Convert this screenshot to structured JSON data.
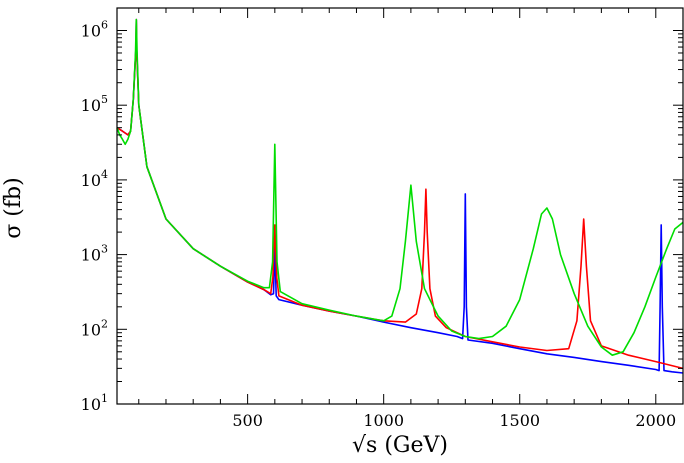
{
  "chart_data": {
    "type": "line",
    "title": "",
    "xlabel": "√s (GeV)",
    "ylabel": "σ (fb)",
    "xlim": [
      20,
      2100
    ],
    "ylim": [
      10,
      2000000
    ],
    "yscale": "log",
    "grid": false,
    "x_ticks": [
      {
        "value": 500,
        "label": "500"
      },
      {
        "value": 1000,
        "label": "1000"
      },
      {
        "value": 1500,
        "label": "1500"
      },
      {
        "value": 2000,
        "label": "2000"
      }
    ],
    "y_ticks": [
      {
        "value": 10,
        "base": "10",
        "exp": "1"
      },
      {
        "value": 100,
        "base": "10",
        "exp": "2"
      },
      {
        "value": 1000,
        "base": "10",
        "exp": "3"
      },
      {
        "value": 10000,
        "base": "10",
        "exp": "4"
      },
      {
        "value": 100000,
        "base": "10",
        "exp": "5"
      },
      {
        "value": 1000000,
        "base": "10",
        "exp": "6"
      }
    ],
    "series": [
      {
        "color": "#0000ff",
        "points": [
          [
            20,
            50000
          ],
          [
            40,
            45000
          ],
          [
            60,
            40000
          ],
          [
            70,
            45000
          ],
          [
            80,
            120000
          ],
          [
            90,
            600000
          ],
          [
            91,
            1400000
          ],
          [
            92,
            600000
          ],
          [
            100,
            100000
          ],
          [
            130,
            15000
          ],
          [
            200,
            3000
          ],
          [
            300,
            1200
          ],
          [
            400,
            700
          ],
          [
            500,
            430
          ],
          [
            560,
            340
          ],
          [
            585,
            290
          ],
          [
            595,
            300
          ],
          [
            598,
            700
          ],
          [
            600,
            1300
          ],
          [
            602,
            700
          ],
          [
            605,
            280
          ],
          [
            615,
            250
          ],
          [
            700,
            210
          ],
          [
            800,
            175
          ],
          [
            900,
            150
          ],
          [
            1000,
            125
          ],
          [
            1100,
            105
          ],
          [
            1200,
            90
          ],
          [
            1270,
            80
          ],
          [
            1290,
            75
          ],
          [
            1296,
            200
          ],
          [
            1300,
            6500
          ],
          [
            1304,
            200
          ],
          [
            1310,
            72
          ],
          [
            1400,
            65
          ],
          [
            1500,
            55
          ],
          [
            1600,
            47
          ],
          [
            1700,
            42
          ],
          [
            1800,
            37
          ],
          [
            1900,
            33
          ],
          [
            2000,
            29
          ],
          [
            2012,
            28
          ],
          [
            2016,
            200
          ],
          [
            2020,
            2500
          ],
          [
            2024,
            200
          ],
          [
            2030,
            28
          ],
          [
            2060,
            27
          ],
          [
            2100,
            26
          ]
        ]
      },
      {
        "color": "#ff0000",
        "points": [
          [
            20,
            50000
          ],
          [
            40,
            45000
          ],
          [
            60,
            40000
          ],
          [
            70,
            45000
          ],
          [
            80,
            120000
          ],
          [
            90,
            600000
          ],
          [
            91,
            1400000
          ],
          [
            92,
            600000
          ],
          [
            100,
            100000
          ],
          [
            130,
            15000
          ],
          [
            200,
            3000
          ],
          [
            300,
            1200
          ],
          [
            400,
            700
          ],
          [
            500,
            430
          ],
          [
            560,
            340
          ],
          [
            585,
            300
          ],
          [
            593,
            500
          ],
          [
            600,
            2500
          ],
          [
            607,
            500
          ],
          [
            615,
            280
          ],
          [
            700,
            210
          ],
          [
            800,
            175
          ],
          [
            900,
            150
          ],
          [
            1000,
            130
          ],
          [
            1080,
            125
          ],
          [
            1120,
            160
          ],
          [
            1140,
            350
          ],
          [
            1150,
            2000
          ],
          [
            1155,
            7500
          ],
          [
            1160,
            2000
          ],
          [
            1170,
            350
          ],
          [
            1190,
            150
          ],
          [
            1230,
            105
          ],
          [
            1300,
            80
          ],
          [
            1400,
            68
          ],
          [
            1500,
            58
          ],
          [
            1600,
            52
          ],
          [
            1680,
            55
          ],
          [
            1710,
            130
          ],
          [
            1725,
            700
          ],
          [
            1735,
            3000
          ],
          [
            1745,
            700
          ],
          [
            1760,
            130
          ],
          [
            1800,
            60
          ],
          [
            1900,
            45
          ],
          [
            2000,
            37
          ],
          [
            2100,
            30
          ]
        ]
      },
      {
        "color": "#00dd00",
        "points": [
          [
            20,
            50000
          ],
          [
            30,
            40000
          ],
          [
            40,
            35000
          ],
          [
            50,
            30000
          ],
          [
            60,
            35000
          ],
          [
            70,
            45000
          ],
          [
            80,
            120000
          ],
          [
            88,
            500000
          ],
          [
            91,
            1400000
          ],
          [
            94,
            500000
          ],
          [
            100,
            100000
          ],
          [
            130,
            15000
          ],
          [
            200,
            3000
          ],
          [
            300,
            1200
          ],
          [
            400,
            700
          ],
          [
            500,
            440
          ],
          [
            560,
            360
          ],
          [
            580,
            360
          ],
          [
            592,
            800
          ],
          [
            600,
            30000
          ],
          [
            608,
            800
          ],
          [
            620,
            320
          ],
          [
            700,
            220
          ],
          [
            800,
            180
          ],
          [
            900,
            150
          ],
          [
            1000,
            130
          ],
          [
            1030,
            150
          ],
          [
            1060,
            350
          ],
          [
            1080,
            1500
          ],
          [
            1100,
            8500
          ],
          [
            1120,
            1500
          ],
          [
            1150,
            350
          ],
          [
            1200,
            150
          ],
          [
            1250,
            95
          ],
          [
            1300,
            80
          ],
          [
            1350,
            75
          ],
          [
            1400,
            80
          ],
          [
            1450,
            110
          ],
          [
            1500,
            250
          ],
          [
            1550,
            1200
          ],
          [
            1580,
            3500
          ],
          [
            1600,
            4200
          ],
          [
            1620,
            3000
          ],
          [
            1650,
            1000
          ],
          [
            1700,
            300
          ],
          [
            1750,
            110
          ],
          [
            1800,
            58
          ],
          [
            1840,
            45
          ],
          [
            1880,
            50
          ],
          [
            1920,
            90
          ],
          [
            1960,
            200
          ],
          [
            2000,
            500
          ],
          [
            2040,
            1200
          ],
          [
            2070,
            2200
          ],
          [
            2100,
            2700
          ]
        ]
      }
    ]
  }
}
